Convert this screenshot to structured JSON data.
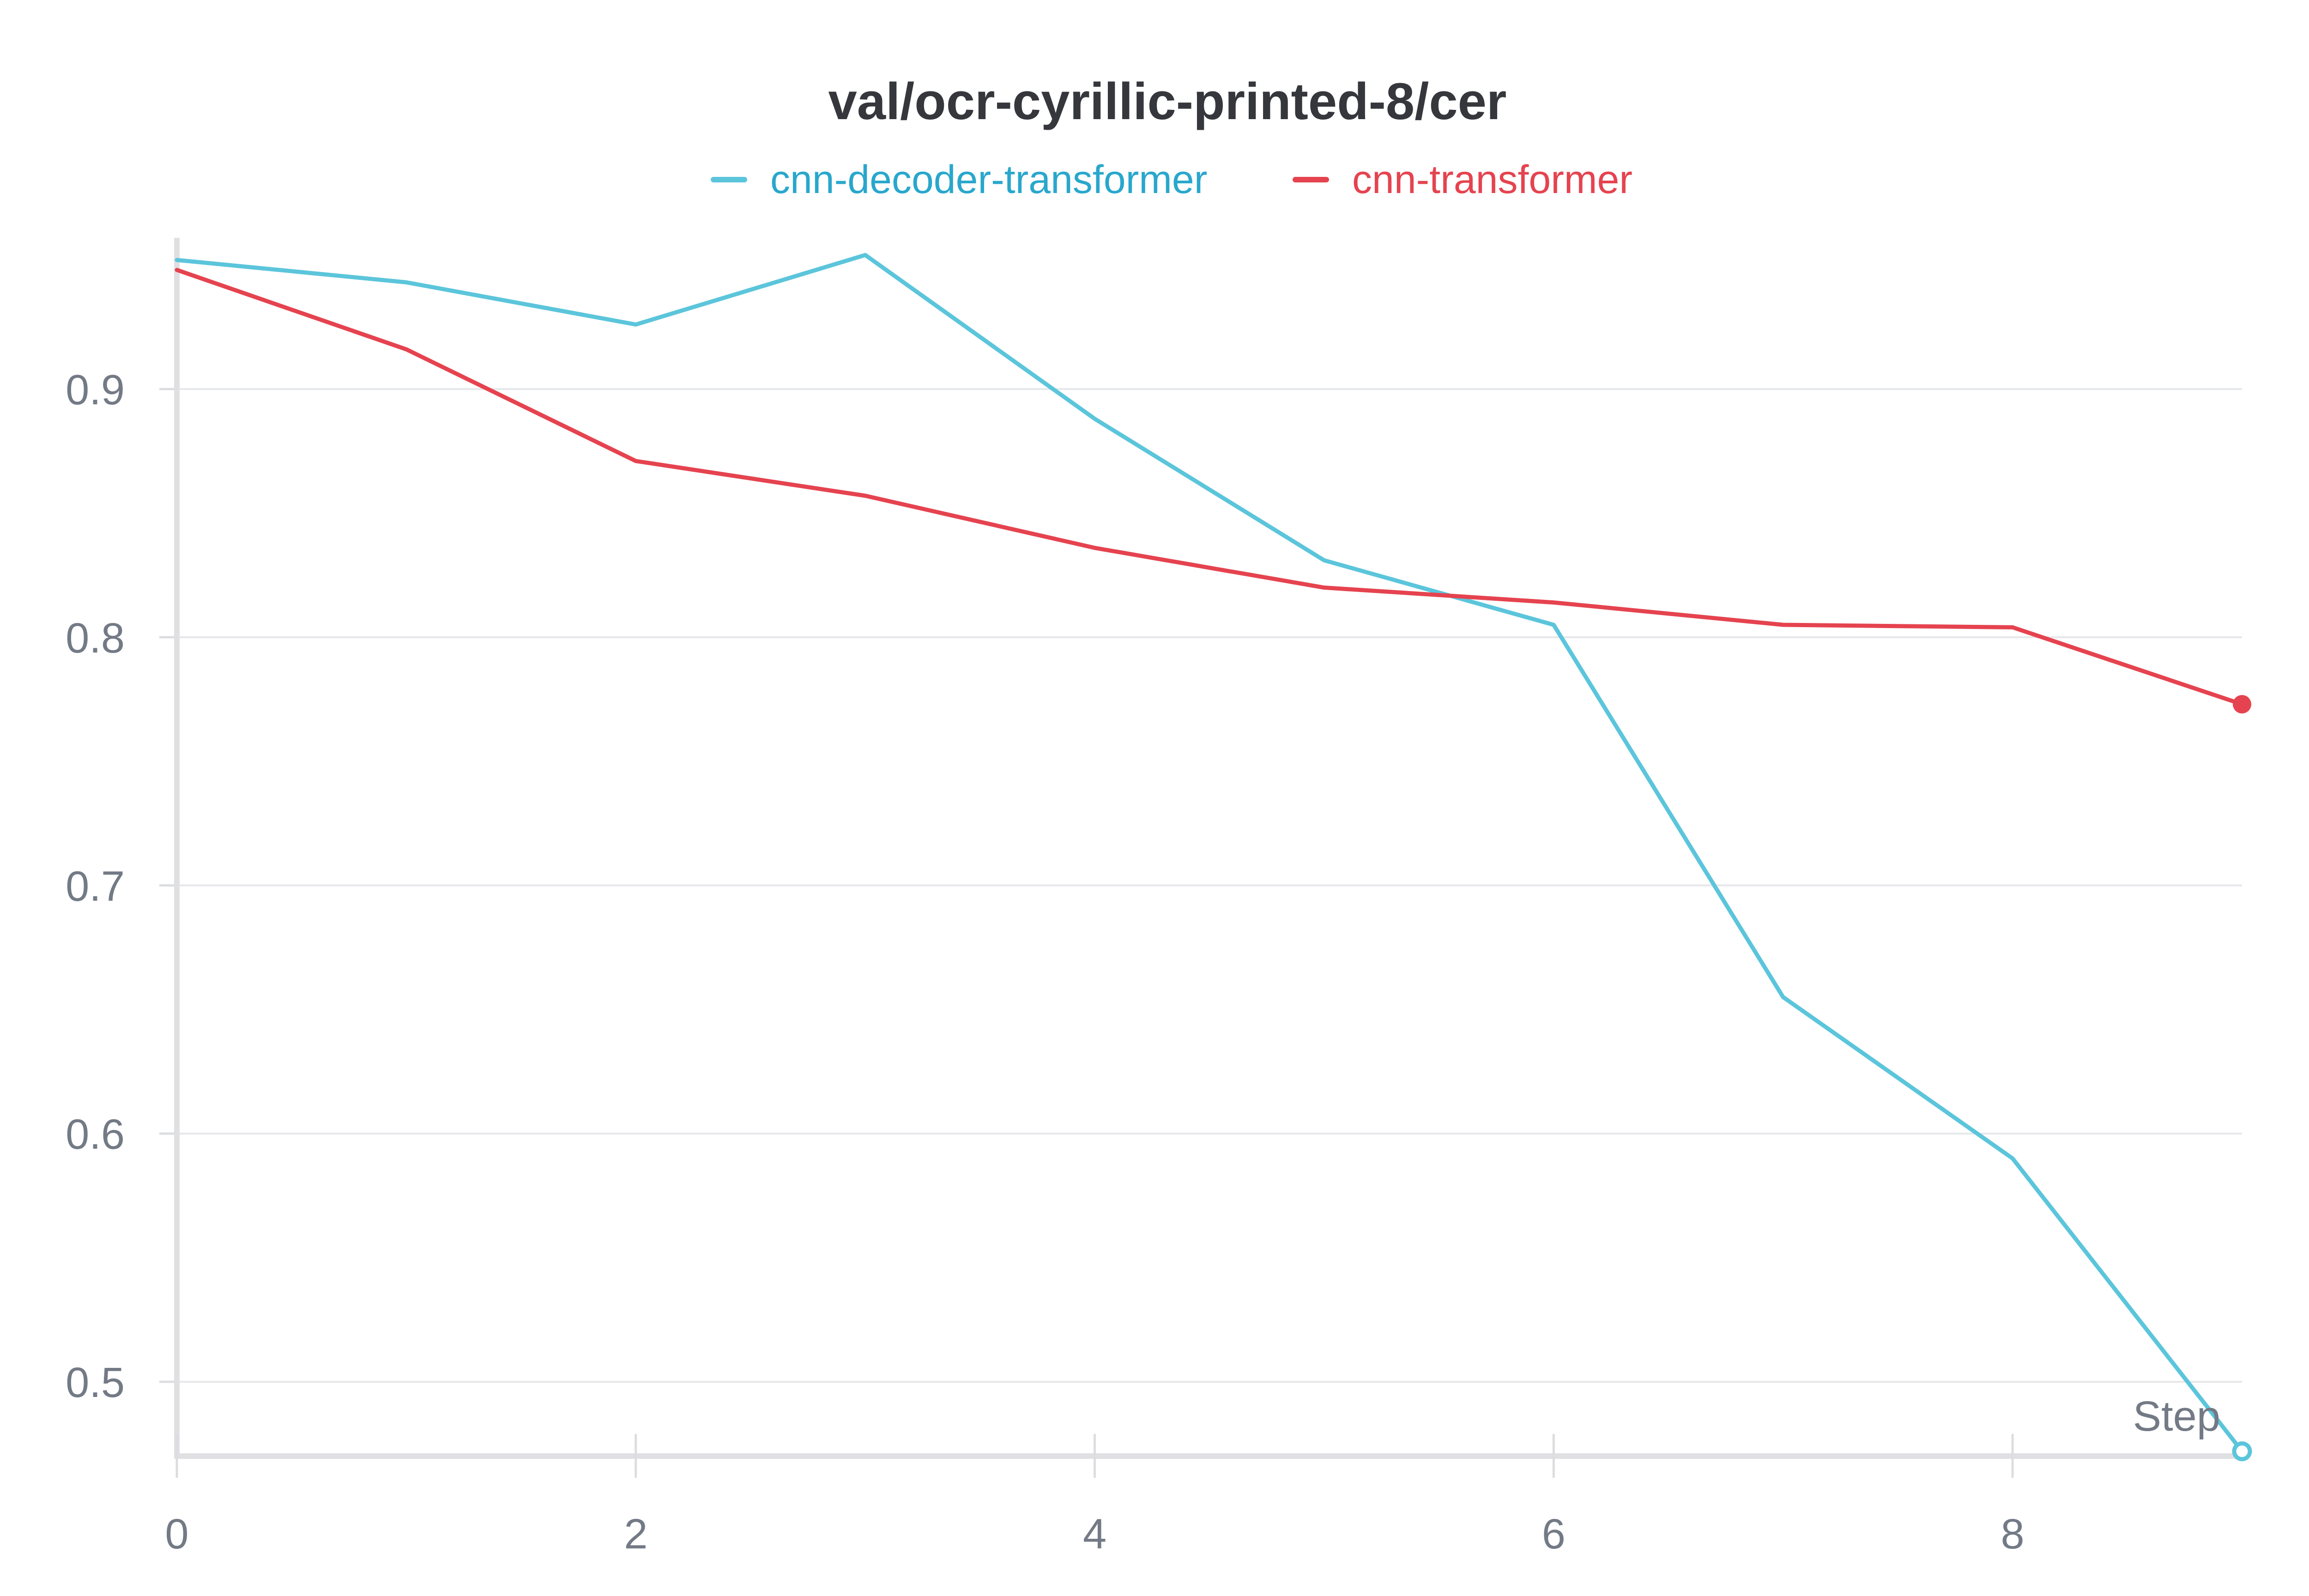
{
  "chart_data": {
    "type": "line",
    "title": "val/ocr-cyrillic-printed-8/cer",
    "xlabel": "Step",
    "ylabel": "",
    "xlim": [
      0,
      9
    ],
    "ylim": [
      0.471,
      0.96
    ],
    "x_ticks": [
      0,
      2,
      4,
      6,
      8
    ],
    "y_ticks": [
      0.5,
      0.6,
      0.7,
      0.8,
      0.9
    ],
    "x_tick_labels": [
      "0",
      "2",
      "4",
      "6",
      "8"
    ],
    "y_tick_labels": [
      "0.5",
      "0.6",
      "0.7",
      "0.8",
      "0.9"
    ],
    "grid": true,
    "legend_position": "top-center",
    "x": [
      0,
      1,
      2,
      3,
      4,
      5,
      6,
      7,
      8,
      9
    ],
    "series": [
      {
        "name": "cnn-decoder-transformer",
        "color": "#5bc5db",
        "legend_text_color": "#29a7cc",
        "values": [
          0.952,
          0.943,
          0.926,
          0.954,
          0.888,
          0.831,
          0.805,
          0.655,
          0.59,
          0.472
        ]
      },
      {
        "name": "cnn-transformer",
        "color": "#e5434f",
        "legend_text_color": "#e5434f",
        "values": [
          0.948,
          0.916,
          0.871,
          0.857,
          0.836,
          0.82,
          0.814,
          0.805,
          0.804,
          0.773
        ]
      }
    ]
  }
}
